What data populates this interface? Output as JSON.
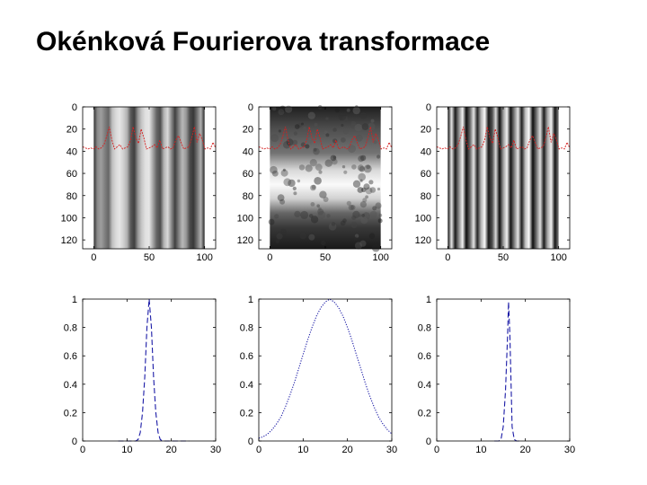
{
  "title": "Okénková Fourierova transformace",
  "colors": {
    "signal_trace": "#d62020",
    "window_curve": "#1a1aa6",
    "axes": "#000000"
  },
  "chart_data": [
    {
      "type": "heatmap",
      "position": "top-left",
      "description_colormap": "gray",
      "xticks": [
        "0",
        "50",
        "100"
      ],
      "xlim": [
        -10,
        110
      ],
      "yticks": [
        "0",
        "20",
        "40",
        "60",
        "80",
        "100",
        "120"
      ],
      "ylim": [
        0,
        128
      ],
      "y_reversed": true,
      "image_x_range": [
        0,
        100
      ],
      "pattern": "vertical-bands",
      "column_intensity": [
        0.2,
        0.55,
        0.62,
        0.5,
        0.4,
        0.75,
        0.85,
        0.9,
        0.82,
        0.7,
        0.35,
        0.25,
        0.6,
        0.78,
        0.88,
        0.9,
        0.65,
        0.4,
        0.3,
        0.7,
        0.85,
        0.55,
        0.25,
        0.5,
        0.72,
        0.6,
        0.3,
        0.22,
        0.45,
        0.7,
        0.15
      ],
      "signal_trace": [
        36,
        37,
        38,
        37,
        38,
        36,
        38,
        37,
        34,
        27,
        18,
        30,
        38,
        36,
        34,
        38,
        37,
        36,
        30,
        18,
        28,
        33,
        20,
        28,
        38,
        37,
        36,
        34,
        37,
        30,
        38,
        37,
        36,
        38,
        37,
        30,
        26,
        32,
        38,
        37,
        36,
        28,
        18,
        32,
        24,
        30,
        38,
        37,
        38,
        32,
        37
      ]
    },
    {
      "type": "heatmap",
      "position": "top-center",
      "description_colormap": "gray",
      "xticks": [
        "0",
        "50",
        "100"
      ],
      "xlim": [
        -10,
        110
      ],
      "yticks": [
        "0",
        "20",
        "40",
        "60",
        "80",
        "100",
        "120"
      ],
      "ylim": [
        0,
        128
      ],
      "y_reversed": true,
      "image_x_range": [
        0,
        100
      ],
      "pattern": "horizontal-band",
      "band_center_row": 70,
      "signal_trace": [
        36,
        37,
        38,
        37,
        38,
        36,
        38,
        37,
        34,
        27,
        18,
        30,
        38,
        36,
        34,
        38,
        37,
        36,
        30,
        18,
        28,
        33,
        20,
        28,
        38,
        37,
        36,
        34,
        37,
        30,
        38,
        37,
        36,
        38,
        37,
        30,
        26,
        32,
        38,
        37,
        36,
        28,
        18,
        32,
        24,
        30,
        38,
        37,
        38,
        32,
        37
      ]
    },
    {
      "type": "heatmap",
      "position": "top-right",
      "description_colormap": "gray",
      "xticks": [
        "0",
        "50",
        "100"
      ],
      "xlim": [
        -10,
        110
      ],
      "yticks": [
        "0",
        "20",
        "40",
        "60",
        "80",
        "100",
        "120"
      ],
      "ylim": [
        0,
        128
      ],
      "y_reversed": true,
      "image_x_range": [
        0,
        100
      ],
      "pattern": "vertical-bands",
      "column_intensity": [
        0.05,
        0.9,
        0.1,
        0.55,
        0.95,
        0.05,
        0.4,
        0.9,
        0.15,
        0.7,
        0.98,
        0.1,
        0.3,
        0.85,
        0.05,
        0.6,
        0.95,
        0.08,
        0.5,
        0.9,
        0.12,
        0.75,
        0.98,
        0.05,
        0.45,
        0.88,
        0.1,
        0.65,
        0.95,
        0.08,
        0.5
      ],
      "signal_trace": [
        36,
        37,
        38,
        37,
        38,
        36,
        38,
        37,
        34,
        27,
        18,
        30,
        38,
        36,
        34,
        38,
        37,
        36,
        30,
        18,
        28,
        33,
        20,
        28,
        38,
        37,
        36,
        34,
        37,
        30,
        38,
        37,
        36,
        38,
        37,
        30,
        26,
        32,
        38,
        37,
        36,
        28,
        18,
        32,
        24,
        30,
        38,
        37,
        38,
        32,
        37
      ]
    },
    {
      "type": "line",
      "position": "bottom-left",
      "xticks": [
        "0",
        "10",
        "20",
        "30"
      ],
      "xlim": [
        0,
        30
      ],
      "yticks": [
        "0",
        "0.2",
        "0.4",
        "0.6",
        "0.8",
        "1"
      ],
      "ylim": [
        0,
        1
      ],
      "line_style": "dashed",
      "x": [
        8,
        9,
        10,
        11,
        12,
        12.5,
        13,
        13.5,
        14,
        14.5,
        15,
        15.5,
        16,
        16.5,
        17,
        17.5,
        18,
        19,
        20,
        21,
        22,
        23,
        24
      ],
      "y": [
        0,
        0,
        0,
        0,
        0,
        0.01,
        0.06,
        0.2,
        0.45,
        0.8,
        1,
        0.8,
        0.45,
        0.2,
        0.06,
        0.01,
        0,
        0,
        0,
        0,
        0,
        0,
        0
      ]
    },
    {
      "type": "line",
      "position": "bottom-center",
      "xticks": [
        "0",
        "10",
        "20",
        "30"
      ],
      "xlim": [
        0,
        30
      ],
      "yticks": [
        "0",
        "0.2",
        "0.4",
        "0.6",
        "0.8",
        "1"
      ],
      "ylim": [
        0,
        1
      ],
      "line_style": "dotted",
      "x": [
        0,
        1,
        2,
        3,
        4,
        5,
        6,
        7,
        8,
        9,
        10,
        11,
        12,
        13,
        14,
        15,
        16,
        17,
        18,
        19,
        20,
        21,
        22,
        23,
        24,
        25,
        26,
        27,
        28,
        29,
        30
      ],
      "y": [
        0.02,
        0.03,
        0.05,
        0.08,
        0.12,
        0.17,
        0.24,
        0.32,
        0.41,
        0.51,
        0.61,
        0.71,
        0.8,
        0.88,
        0.94,
        0.98,
        1,
        0.98,
        0.94,
        0.88,
        0.8,
        0.71,
        0.61,
        0.51,
        0.41,
        0.32,
        0.24,
        0.17,
        0.12,
        0.08,
        0.05
      ]
    },
    {
      "type": "line",
      "position": "bottom-right",
      "xticks": [
        "0",
        "10",
        "20",
        "30"
      ],
      "xlim": [
        0,
        30
      ],
      "yticks": [
        "0",
        "0.2",
        "0.4",
        "0.6",
        "0.8",
        "1"
      ],
      "ylim": [
        0,
        1
      ],
      "line_style": "dashed",
      "x": [
        13,
        14,
        14.5,
        15,
        15.5,
        16,
        16.2,
        16.5,
        17,
        17.5,
        18,
        19
      ],
      "y": [
        0,
        0,
        0.01,
        0.1,
        0.35,
        0.75,
        0.98,
        0.75,
        0.1,
        0.01,
        0,
        0
      ]
    }
  ]
}
